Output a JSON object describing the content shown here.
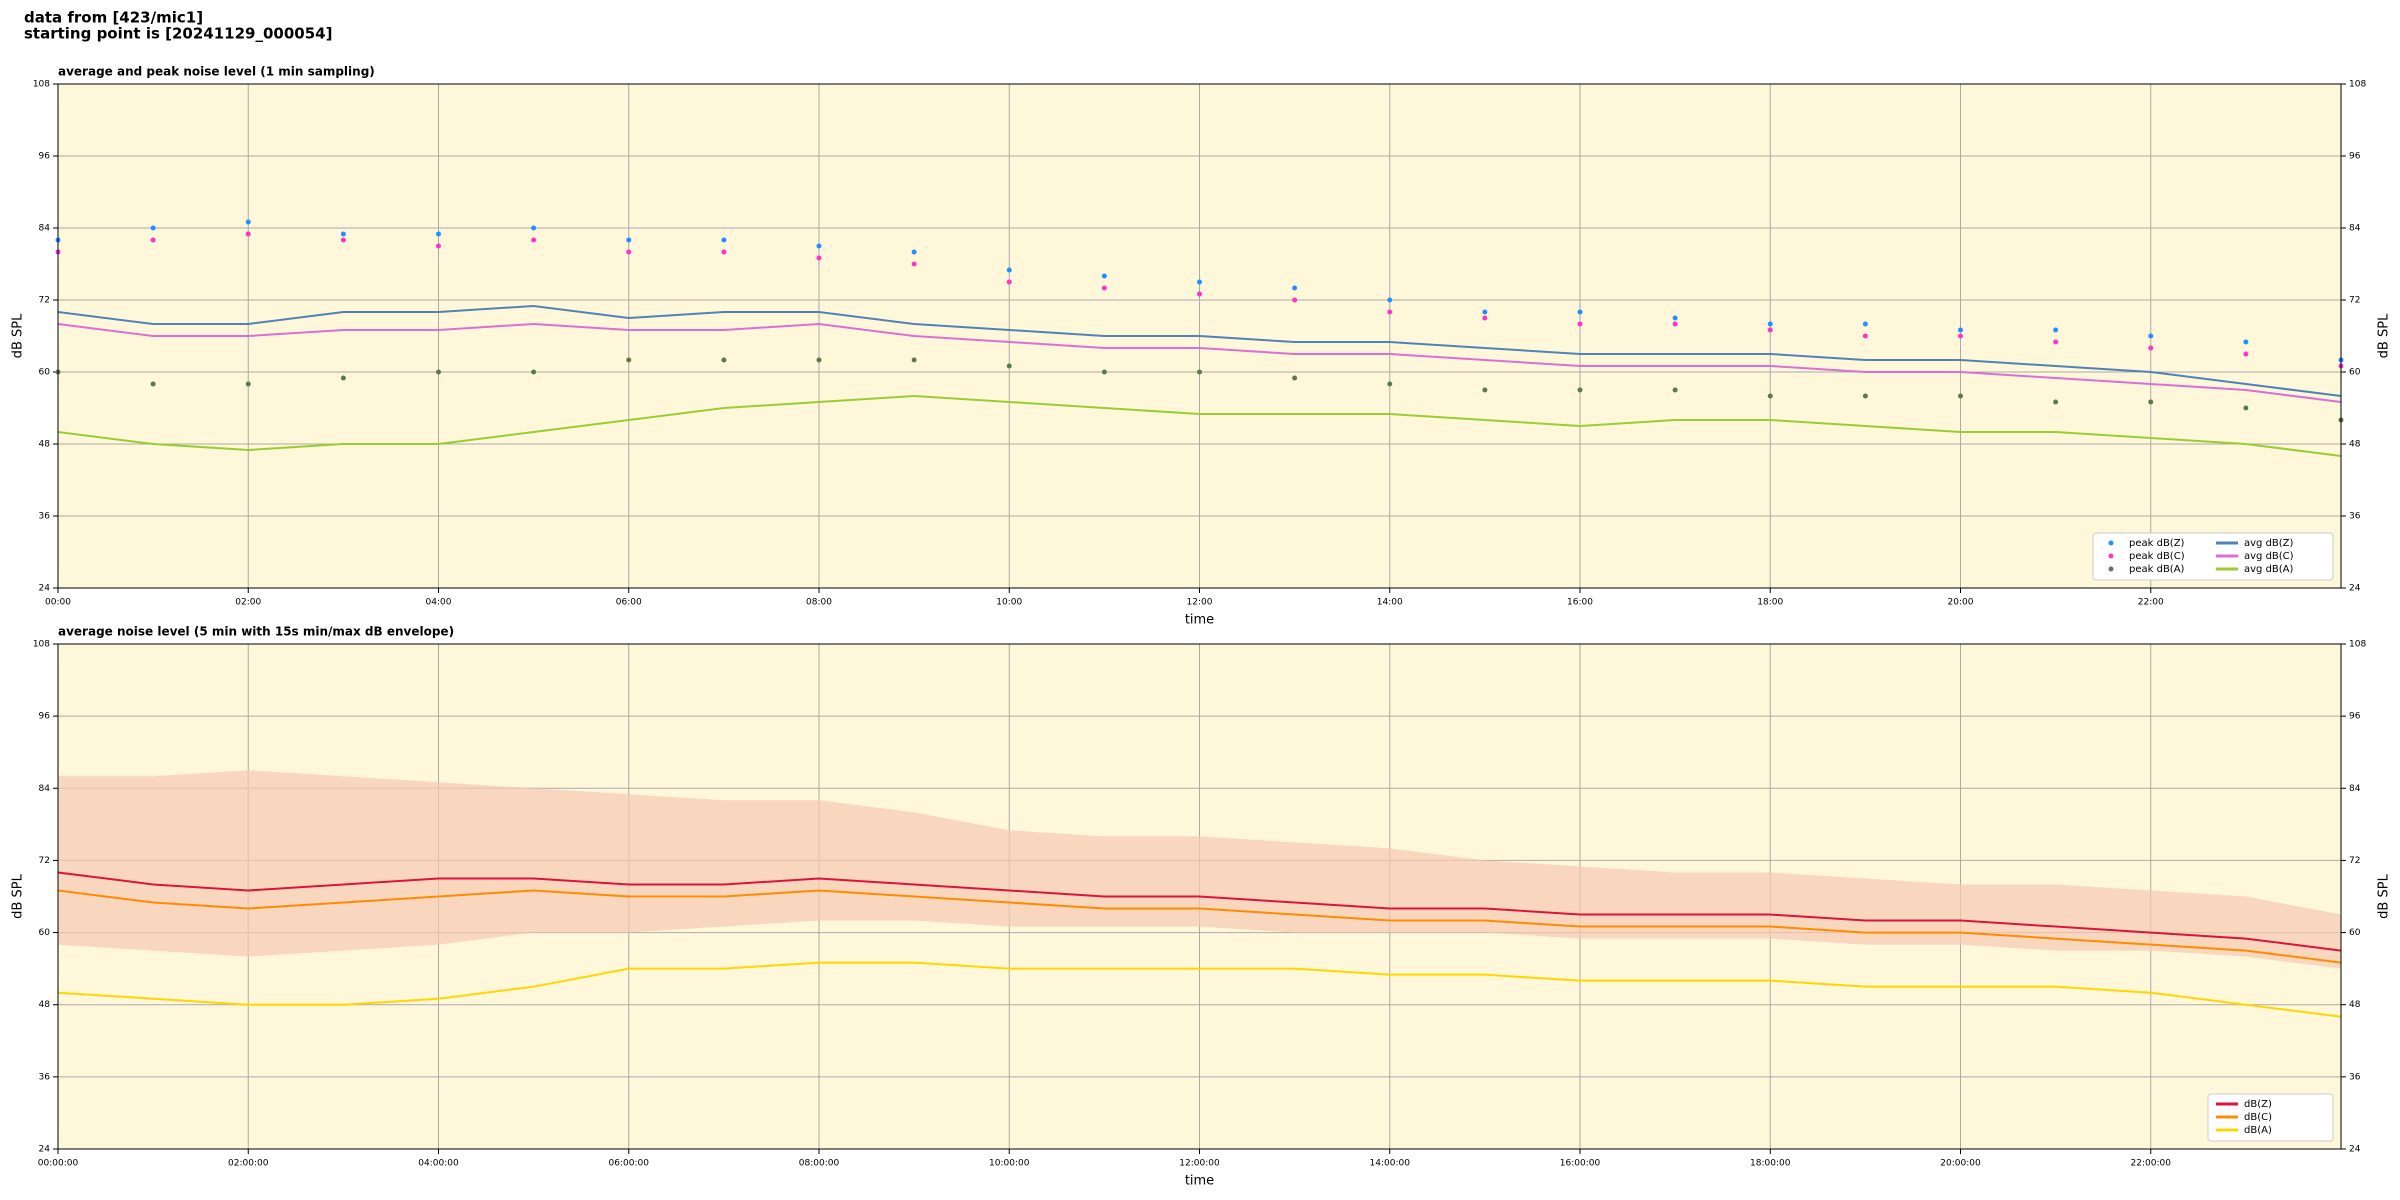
{
  "header": [
    "data from [423/mic1]",
    "starting point is [20241129_000054]"
  ],
  "chart_data": [
    {
      "type": "line",
      "title": "average and peak noise level (1 min sampling)",
      "x_label": "time",
      "y_label": "dB SPL",
      "background": "#fef7da",
      "grid": true,
      "legend": "lower right",
      "legend_columns": 2,
      "x": [
        0,
        1,
        2,
        3,
        4,
        5,
        6,
        7,
        8,
        9,
        10,
        11,
        12,
        13,
        14,
        15,
        16,
        17,
        18,
        19,
        20,
        21,
        22,
        23,
        24
      ],
      "xlim": [
        0,
        24
      ],
      "ylim": [
        24,
        108
      ],
      "y2lim": [
        24,
        108
      ],
      "xticks": [
        {
          "value": 0,
          "label": "00:00"
        },
        {
          "value": 2,
          "label": "02:00"
        },
        {
          "value": 4,
          "label": "04:00"
        },
        {
          "value": 6,
          "label": "06:00"
        },
        {
          "value": 8,
          "label": "08:00"
        },
        {
          "value": 10,
          "label": "10:00"
        },
        {
          "value": 12,
          "label": "12:00"
        },
        {
          "value": 14,
          "label": "14:00"
        },
        {
          "value": 16,
          "label": "16:00"
        },
        {
          "value": 18,
          "label": "18:00"
        },
        {
          "value": 20,
          "label": "20:00"
        },
        {
          "value": 22,
          "label": "22:00"
        }
      ],
      "yticks": [
        24,
        36,
        48,
        60,
        72,
        84,
        96,
        108
      ],
      "y2ticks": [
        24,
        36,
        48,
        60,
        72,
        84,
        96,
        108
      ],
      "series": [
        {
          "name": "peak dB(Z)",
          "color": "#1e90ff",
          "mode": "markers",
          "values": [
            82,
            84,
            85,
            83,
            83,
            84,
            82,
            82,
            81,
            80,
            77,
            76,
            75,
            74,
            72,
            70,
            70,
            69,
            68,
            68,
            67,
            67,
            66,
            65,
            62
          ]
        },
        {
          "name": "peak dB(C)",
          "color": "#ff33cc",
          "mode": "markers",
          "values": [
            80,
            82,
            83,
            82,
            81,
            82,
            80,
            80,
            79,
            78,
            75,
            74,
            73,
            72,
            70,
            69,
            68,
            68,
            67,
            66,
            66,
            65,
            64,
            63,
            61
          ]
        },
        {
          "name": "peak dB(A)",
          "color": "#5b7a4a",
          "mode": "markers",
          "values": [
            60,
            58,
            58,
            59,
            60,
            60,
            62,
            62,
            62,
            62,
            61,
            60,
            60,
            59,
            58,
            57,
            57,
            57,
            56,
            56,
            56,
            55,
            55,
            54,
            52
          ]
        },
        {
          "name": "avg dB(Z)",
          "color": "#4f83b8",
          "mode": "lines",
          "values": [
            70,
            68,
            68,
            70,
            70,
            71,
            69,
            70,
            70,
            68,
            67,
            66,
            66,
            65,
            65,
            64,
            63,
            63,
            63,
            62,
            62,
            61,
            60,
            58,
            56
          ]
        },
        {
          "name": "avg dB(C)",
          "color": "#da70d6",
          "mode": "lines",
          "values": [
            68,
            66,
            66,
            67,
            67,
            68,
            67,
            67,
            68,
            66,
            65,
            64,
            64,
            63,
            63,
            62,
            61,
            61,
            61,
            60,
            60,
            59,
            58,
            57,
            55
          ]
        },
        {
          "name": "avg dB(A)",
          "color": "#9acd32",
          "mode": "lines",
          "values": [
            50,
            48,
            47,
            48,
            48,
            50,
            52,
            54,
            55,
            56,
            55,
            54,
            53,
            53,
            53,
            52,
            51,
            52,
            52,
            51,
            50,
            50,
            49,
            48,
            46
          ]
        }
      ]
    },
    {
      "type": "line",
      "title": "average noise level (5 min with 15s min/max dB envelope)",
      "x_label": "time",
      "y_label": "dB SPL",
      "background": "#fef7da",
      "grid": true,
      "legend": "lower right",
      "legend_columns": 1,
      "x": [
        0,
        1,
        2,
        3,
        4,
        5,
        6,
        7,
        8,
        9,
        10,
        11,
        12,
        13,
        14,
        15,
        16,
        17,
        18,
        19,
        20,
        21,
        22,
        23,
        24
      ],
      "xlim": [
        0,
        24
      ],
      "ylim": [
        24,
        108
      ],
      "y2lim": [
        24,
        108
      ],
      "xticks": [
        {
          "value": 0,
          "label": "00:00:00"
        },
        {
          "value": 2,
          "label": "02:00:00"
        },
        {
          "value": 4,
          "label": "04:00:00"
        },
        {
          "value": 6,
          "label": "06:00:00"
        },
        {
          "value": 8,
          "label": "08:00:00"
        },
        {
          "value": 10,
          "label": "10:00:00"
        },
        {
          "value": 12,
          "label": "12:00:00"
        },
        {
          "value": 14,
          "label": "14:00:00"
        },
        {
          "value": 16,
          "label": "16:00:00"
        },
        {
          "value": 18,
          "label": "18:00:00"
        },
        {
          "value": 20,
          "label": "20:00:00"
        },
        {
          "value": 22,
          "label": "22:00:00"
        }
      ],
      "yticks": [
        24,
        36,
        48,
        60,
        72,
        84,
        96,
        108
      ],
      "y2ticks": [
        24,
        36,
        48,
        60,
        72,
        84,
        96,
        108
      ],
      "envelope": {
        "color": "#f6c9b2",
        "upper": [
          86,
          86,
          87,
          86,
          85,
          84,
          83,
          82,
          82,
          80,
          77,
          76,
          76,
          75,
          74,
          72,
          71,
          70,
          70,
          69,
          68,
          68,
          67,
          66,
          63
        ],
        "lower": [
          58,
          57,
          56,
          57,
          58,
          60,
          60,
          61,
          62,
          62,
          61,
          61,
          61,
          60,
          60,
          60,
          59,
          59,
          59,
          58,
          58,
          57,
          57,
          56,
          54
        ]
      },
      "series": [
        {
          "name": "dB(Z)",
          "color": "#dc143c",
          "mode": "lines",
          "values": [
            70,
            68,
            67,
            68,
            69,
            69,
            68,
            68,
            69,
            68,
            67,
            66,
            66,
            65,
            64,
            64,
            63,
            63,
            63,
            62,
            62,
            61,
            60,
            59,
            57
          ]
        },
        {
          "name": "dB(C)",
          "color": "#ff8c00",
          "mode": "lines",
          "values": [
            67,
            65,
            64,
            65,
            66,
            67,
            66,
            66,
            67,
            66,
            65,
            64,
            64,
            63,
            62,
            62,
            61,
            61,
            61,
            60,
            60,
            59,
            58,
            57,
            55
          ]
        },
        {
          "name": "dB(A)",
          "color": "#ffd700",
          "mode": "lines",
          "values": [
            50,
            49,
            48,
            48,
            49,
            51,
            54,
            54,
            55,
            55,
            54,
            54,
            54,
            54,
            53,
            53,
            52,
            52,
            52,
            51,
            51,
            51,
            50,
            48,
            46
          ]
        }
      ]
    }
  ]
}
